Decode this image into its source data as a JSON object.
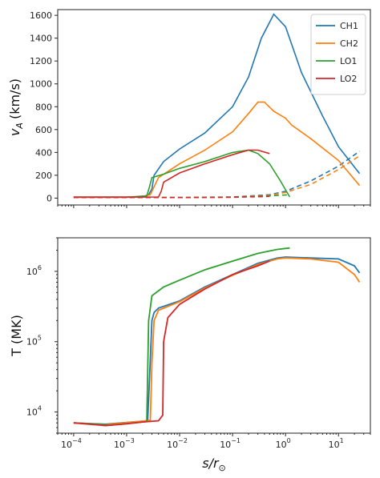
{
  "chart_data": [
    {
      "type": "line",
      "ylabel_main": "v",
      "ylabel_sub": "A",
      "ylabel_unit": "(km/s)",
      "xscale": "log",
      "xlim": [
        5e-05,
        40
      ],
      "ylim": [
        -60,
        1650
      ],
      "yticks": [
        0,
        200,
        400,
        600,
        800,
        1000,
        1200,
        1400,
        1600
      ],
      "xticks": [
        0.0001,
        0.001,
        0.01,
        0.1,
        1,
        10
      ],
      "legend": {
        "placement": "top-right",
        "entries": [
          "CH1",
          "CH2",
          "LO1",
          "LO2"
        ]
      },
      "series": [
        {
          "name": "CH1",
          "color": "#1f77b4",
          "style": "solid",
          "x": [
            0.0001,
            0.001,
            0.002,
            0.0026,
            0.003,
            0.0033,
            0.005,
            0.01,
            0.03,
            0.1,
            0.2,
            0.35,
            0.6,
            1,
            2,
            5,
            10,
            25
          ],
          "y": [
            10,
            10,
            12,
            30,
            80,
            200,
            320,
            430,
            570,
            800,
            1060,
            1400,
            1610,
            1500,
            1100,
            720,
            450,
            215
          ]
        },
        {
          "name": "CH1",
          "color": "#1f77b4",
          "style": "dashed",
          "x": [
            0.0001,
            0.01,
            0.1,
            0.5,
            1,
            3,
            10,
            25
          ],
          "y": [
            5,
            5,
            10,
            30,
            60,
            150,
            280,
            410
          ]
        },
        {
          "name": "CH2",
          "color": "#ff7f0e",
          "style": "solid",
          "x": [
            0.0001,
            0.001,
            0.002,
            0.0028,
            0.003,
            0.004,
            0.01,
            0.03,
            0.1,
            0.2,
            0.3,
            0.4,
            0.6,
            1,
            1.3,
            3,
            10,
            25
          ],
          "y": [
            10,
            10,
            12,
            30,
            60,
            180,
            300,
            420,
            580,
            740,
            840,
            840,
            760,
            700,
            640,
            520,
            330,
            110
          ]
        },
        {
          "name": "CH2",
          "color": "#ff7f0e",
          "style": "dashed",
          "x": [
            0.0001,
            0.01,
            0.1,
            0.5,
            1,
            3,
            10,
            25
          ],
          "y": [
            5,
            5,
            8,
            25,
            50,
            120,
            250,
            370
          ]
        },
        {
          "name": "LO1",
          "color": "#2ca02c",
          "style": "solid",
          "x": [
            0.0001,
            0.001,
            0.0024,
            0.0027,
            0.003,
            0.005,
            0.01,
            0.03,
            0.1,
            0.2,
            0.3,
            0.5,
            0.8,
            1.2
          ],
          "y": [
            8,
            8,
            20,
            100,
            180,
            210,
            260,
            320,
            400,
            420,
            390,
            300,
            150,
            10
          ]
        },
        {
          "name": "LO1",
          "color": "#2ca02c",
          "style": "dashed",
          "x": [
            0.0001,
            0.01,
            0.1,
            0.5,
            1.2
          ],
          "y": [
            5,
            5,
            8,
            20,
            30
          ]
        },
        {
          "name": "LO2",
          "color": "#d62728",
          "style": "solid",
          "x": [
            0.0001,
            0.001,
            0.004,
            0.0045,
            0.005,
            0.01,
            0.03,
            0.1,
            0.2,
            0.3,
            0.5
          ],
          "y": [
            8,
            8,
            10,
            60,
            140,
            220,
            300,
            380,
            420,
            420,
            390
          ]
        },
        {
          "name": "LO2",
          "color": "#d62728",
          "style": "dashed",
          "x": [
            0.0001,
            0.01,
            0.1,
            0.3,
            0.5
          ],
          "y": [
            5,
            5,
            8,
            12,
            15
          ]
        }
      ]
    },
    {
      "type": "line",
      "ylabel": "T (MK)",
      "xlabel_main": "s/r",
      "xlabel_sub": "⊙",
      "xscale": "log",
      "yscale": "log",
      "xlim": [
        5e-05,
        40
      ],
      "ylim": [
        5000,
        3000000
      ],
      "yticks": [
        10000,
        100000,
        1000000
      ],
      "ytick_labels": [
        "10",
        "10",
        "10"
      ],
      "ytick_exps": [
        "4",
        "5",
        "6"
      ],
      "xticks": [
        0.0001,
        0.001,
        0.01,
        0.1,
        1,
        10
      ],
      "xtick_labels": [
        "10",
        "10",
        "10",
        "10",
        "10",
        "10"
      ],
      "xtick_exps": [
        "−4",
        "−3",
        "−2",
        "−1",
        "0",
        "1"
      ],
      "series": [
        {
          "name": "CH1",
          "color": "#1f77b4",
          "x": [
            0.0001,
            0.0004,
            0.0025,
            0.0027,
            0.003,
            0.0033,
            0.004,
            0.01,
            0.03,
            0.1,
            0.3,
            0.7,
            1,
            3,
            10,
            20,
            25
          ],
          "y": [
            7000,
            6700,
            7500,
            30000,
            200000,
            260000,
            300000,
            380000,
            600000,
            900000,
            1300000,
            1550000,
            1600000,
            1550000,
            1500000,
            1200000,
            950000
          ]
        },
        {
          "name": "CH2",
          "color": "#ff7f0e",
          "x": [
            0.0001,
            0.0004,
            0.0028,
            0.003,
            0.0033,
            0.004,
            0.01,
            0.03,
            0.1,
            0.3,
            0.7,
            1,
            3,
            10,
            20,
            25
          ],
          "y": [
            7000,
            6600,
            7600,
            50000,
            200000,
            280000,
            370000,
            580000,
            880000,
            1250000,
            1500000,
            1550000,
            1500000,
            1350000,
            900000,
            700000
          ]
        },
        {
          "name": "LO1",
          "color": "#2ca02c",
          "x": [
            0.0001,
            0.0005,
            0.0024,
            0.0026,
            0.003,
            0.005,
            0.01,
            0.03,
            0.1,
            0.3,
            0.7,
            1.2
          ],
          "y": [
            7000,
            6500,
            7300,
            200000,
            450000,
            600000,
            750000,
            1050000,
            1400000,
            1800000,
            2050000,
            2150000
          ]
        },
        {
          "name": "LO2",
          "color": "#d62728",
          "x": [
            0.0001,
            0.0004,
            0.001,
            0.002,
            0.004,
            0.0048,
            0.005,
            0.006,
            0.01,
            0.03,
            0.1,
            0.3,
            0.5
          ],
          "y": [
            7000,
            6400,
            6800,
            7200,
            7500,
            9000,
            100000,
            220000,
            340000,
            560000,
            900000,
            1200000,
            1400000
          ]
        }
      ]
    }
  ]
}
